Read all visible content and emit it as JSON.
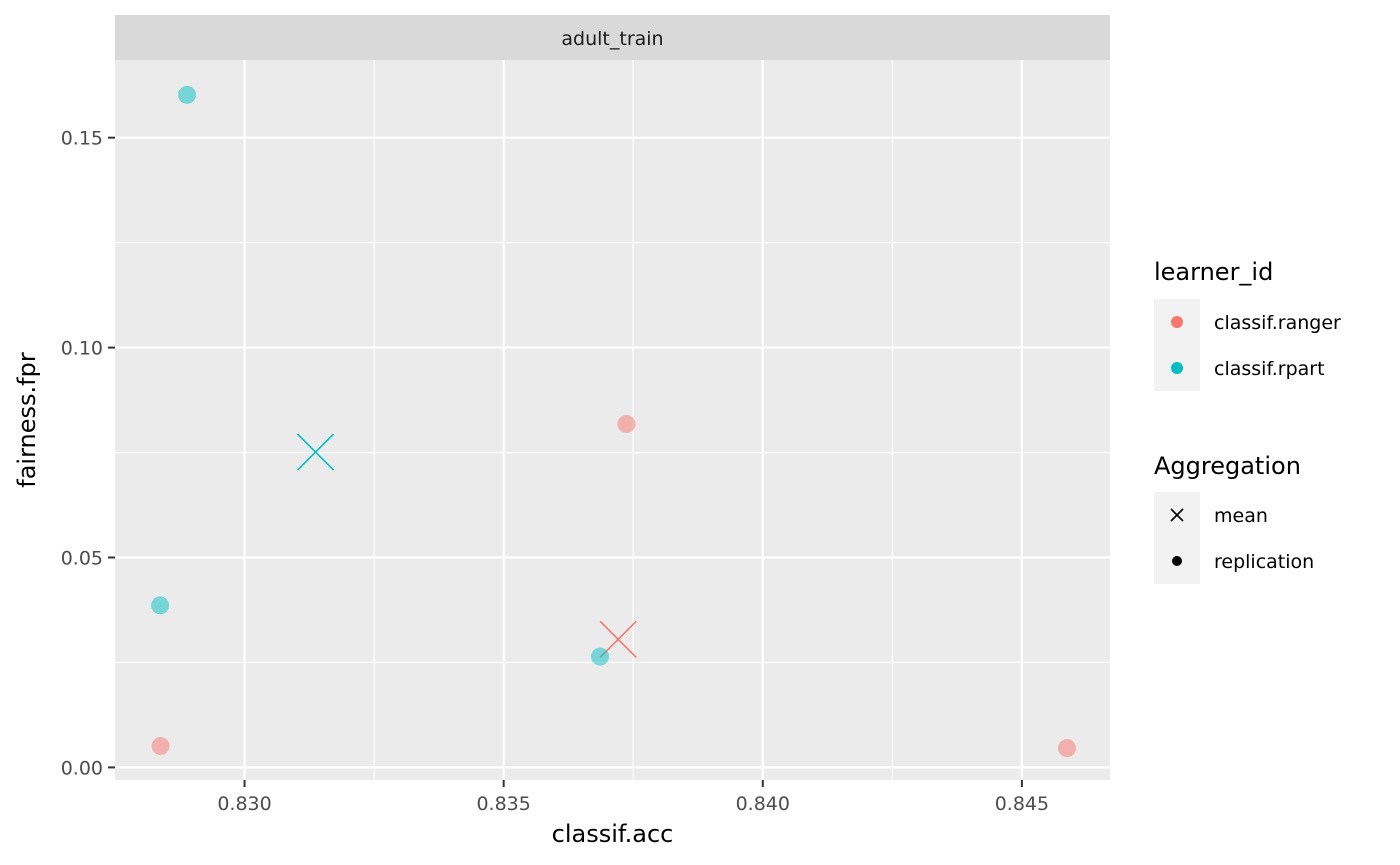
{
  "chart_data": {
    "type": "scatter",
    "facet": "adult_train",
    "xlabel": "classif.acc",
    "ylabel": "fairness.fpr",
    "xlim": [
      0.8275,
      0.8467
    ],
    "ylim": [
      -0.003,
      0.1685
    ],
    "x_ticks": [
      0.83,
      0.835,
      0.84,
      0.845
    ],
    "x_tick_labels": [
      "0.830",
      "0.835",
      "0.840",
      "0.845"
    ],
    "y_ticks": [
      0.0,
      0.05,
      0.1,
      0.15
    ],
    "y_tick_labels": [
      "0.00",
      "0.05",
      "0.10",
      "0.15"
    ],
    "grid": true,
    "legend_position": "right",
    "legends": [
      {
        "title": "learner_id",
        "entries": [
          {
            "label": "classif.ranger",
            "color": "#F8766D"
          },
          {
            "label": "classif.rpart",
            "color": "#00BFC4"
          }
        ]
      },
      {
        "title": "Aggregation",
        "entries": [
          {
            "label": "mean",
            "shape": "cross"
          },
          {
            "label": "replication",
            "shape": "circle"
          }
        ]
      }
    ],
    "series": [
      {
        "learner": "classif.ranger",
        "color": "#F8766D",
        "replication": [
          {
            "x": 0.83737,
            "y": 0.0818
          },
          {
            "x": 0.82838,
            "y": 0.0051
          },
          {
            "x": 0.84587,
            "y": 0.0046
          }
        ],
        "mean": [
          {
            "x": 0.83721,
            "y": 0.0305
          }
        ]
      },
      {
        "learner": "classif.rpart",
        "color": "#00BFC4",
        "replication": [
          {
            "x": 0.82889,
            "y": 0.1602
          },
          {
            "x": 0.82837,
            "y": 0.0386
          },
          {
            "x": 0.83686,
            "y": 0.0264
          }
        ],
        "mean": [
          {
            "x": 0.83137,
            "y": 0.0751
          }
        ]
      }
    ]
  }
}
